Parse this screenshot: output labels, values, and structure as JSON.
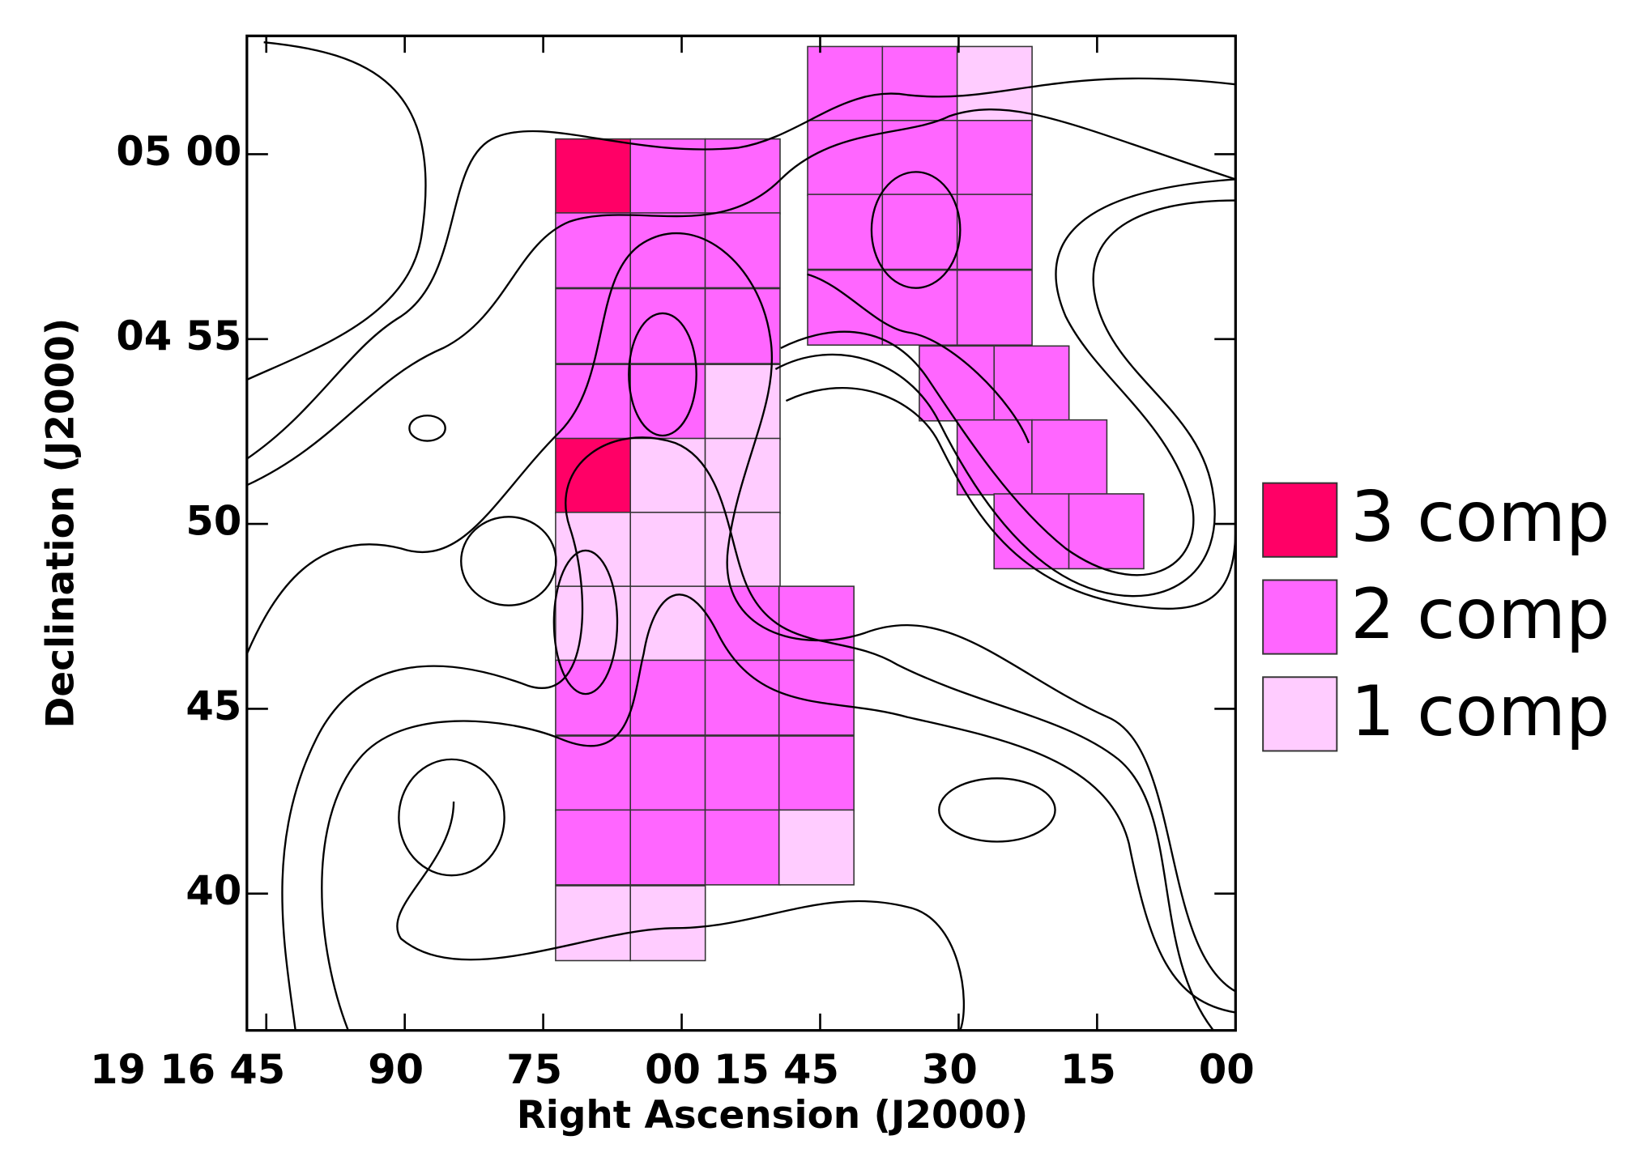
{
  "chart_data": {
    "type": "grid-map",
    "x_label": "Right Ascension (J2000)",
    "y_label": "Declination (J2000)",
    "xlim": [
      107.1,
      0
    ],
    "ylim": [
      36.3,
      63.2
    ],
    "xticks": [
      {
        "value": 105,
        "label": "19 16 45"
      },
      90,
      75,
      {
        "value": 60,
        "label": "00"
      },
      {
        "value": 45,
        "label": "15 45"
      },
      30,
      15,
      {
        "value": 0,
        "label": "00"
      }
    ],
    "yticks": [
      {
        "value": 60,
        "label": "05 00"
      },
      {
        "value": 55,
        "label": "04 55"
      },
      50,
      45,
      40
    ],
    "series": [
      {
        "name": "3 comp",
        "color": "#ff0066",
        "comps": 3
      },
      {
        "name": "2 comp",
        "color": "#ff66ff",
        "comps": 2
      },
      {
        "name": "1 comp",
        "color": "#ffccff",
        "comps": 1
      }
    ],
    "cells": [
      {
        "ra": 69.6,
        "dec": 59.4,
        "comps": 3
      },
      {
        "ra": 61.5,
        "dec": 59.4,
        "comps": 2
      },
      {
        "ra": 53.4,
        "dec": 59.4,
        "comps": 2
      },
      {
        "ra": 69.6,
        "dec": 57.4,
        "comps": 2
      },
      {
        "ra": 61.5,
        "dec": 57.4,
        "comps": 2
      },
      {
        "ra": 53.4,
        "dec": 57.4,
        "comps": 2
      },
      {
        "ra": 69.6,
        "dec": 55.35,
        "comps": 2
      },
      {
        "ra": 61.5,
        "dec": 55.35,
        "comps": 2
      },
      {
        "ra": 53.4,
        "dec": 55.35,
        "comps": 2
      },
      {
        "ra": 69.6,
        "dec": 53.3,
        "comps": 2
      },
      {
        "ra": 61.5,
        "dec": 53.3,
        "comps": 2
      },
      {
        "ra": 53.4,
        "dec": 53.3,
        "comps": 1
      },
      {
        "ra": 69.6,
        "dec": 51.3,
        "comps": 3
      },
      {
        "ra": 61.5,
        "dec": 51.3,
        "comps": 1
      },
      {
        "ra": 53.4,
        "dec": 51.3,
        "comps": 1
      },
      {
        "ra": 69.6,
        "dec": 49.3,
        "comps": 1
      },
      {
        "ra": 61.5,
        "dec": 49.3,
        "comps": 1
      },
      {
        "ra": 53.4,
        "dec": 49.3,
        "comps": 1
      },
      {
        "ra": 69.6,
        "dec": 47.3,
        "comps": 1
      },
      {
        "ra": 61.5,
        "dec": 47.3,
        "comps": 1
      },
      {
        "ra": 53.4,
        "dec": 47.3,
        "comps": 2
      },
      {
        "ra": 45.4,
        "dec": 47.3,
        "comps": 2
      },
      {
        "ra": 69.6,
        "dec": 45.3,
        "comps": 2
      },
      {
        "ra": 61.5,
        "dec": 45.3,
        "comps": 2
      },
      {
        "ra": 53.4,
        "dec": 45.3,
        "comps": 2
      },
      {
        "ra": 45.4,
        "dec": 45.3,
        "comps": 2
      },
      {
        "ra": 69.6,
        "dec": 43.25,
        "comps": 2
      },
      {
        "ra": 61.5,
        "dec": 43.25,
        "comps": 2
      },
      {
        "ra": 53.4,
        "dec": 43.25,
        "comps": 2
      },
      {
        "ra": 45.4,
        "dec": 43.25,
        "comps": 2
      },
      {
        "ra": 69.6,
        "dec": 41.25,
        "comps": 2
      },
      {
        "ra": 61.5,
        "dec": 41.25,
        "comps": 2
      },
      {
        "ra": 53.4,
        "dec": 41.25,
        "comps": 2
      },
      {
        "ra": 45.4,
        "dec": 41.25,
        "comps": 1
      },
      {
        "ra": 69.6,
        "dec": 39.2,
        "comps": 1
      },
      {
        "ra": 61.5,
        "dec": 39.2,
        "comps": 1
      },
      {
        "ra": 42.3,
        "dec": 61.9,
        "comps": 2
      },
      {
        "ra": 34.2,
        "dec": 61.9,
        "comps": 2
      },
      {
        "ra": 26.1,
        "dec": 61.9,
        "comps": 1
      },
      {
        "ra": 42.3,
        "dec": 59.9,
        "comps": 2
      },
      {
        "ra": 34.2,
        "dec": 59.9,
        "comps": 2
      },
      {
        "ra": 26.1,
        "dec": 59.9,
        "comps": 2
      },
      {
        "ra": 42.3,
        "dec": 57.9,
        "comps": 2
      },
      {
        "ra": 34.2,
        "dec": 57.9,
        "comps": 2
      },
      {
        "ra": 26.1,
        "dec": 57.9,
        "comps": 2
      },
      {
        "ra": 42.3,
        "dec": 55.85,
        "comps": 2
      },
      {
        "ra": 34.2,
        "dec": 55.85,
        "comps": 2
      },
      {
        "ra": 26.1,
        "dec": 55.85,
        "comps": 2
      },
      {
        "ra": 30.2,
        "dec": 53.8,
        "comps": 2
      },
      {
        "ra": 22.1,
        "dec": 53.8,
        "comps": 2
      },
      {
        "ra": 26.1,
        "dec": 51.8,
        "comps": 2
      },
      {
        "ra": 18.0,
        "dec": 51.8,
        "comps": 2
      },
      {
        "ra": 22.1,
        "dec": 49.8,
        "comps": 2
      },
      {
        "ra": 14.0,
        "dec": 49.8,
        "comps": 2
      }
    ]
  }
}
